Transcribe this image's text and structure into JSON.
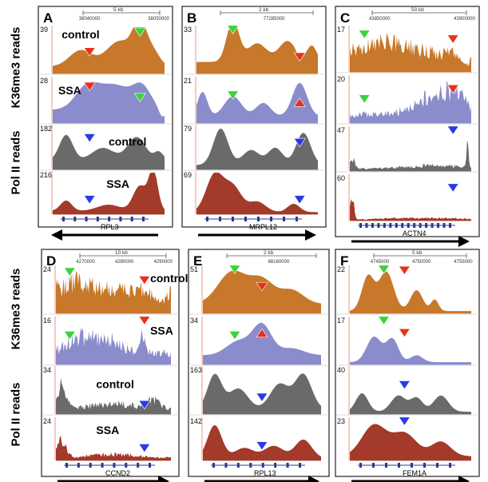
{
  "row_labels": {
    "top_k36": "K36me3 reads",
    "top_pol": "Pol II reads",
    "bottom_k36": "K36me3 reads",
    "bottom_pol": "Pol II reads"
  },
  "colors": {
    "control_k36": "#c8782a",
    "ssa_k36": "#8a8ccc",
    "control_pol": "#6a6a6a",
    "ssa_pol": "#a33a2a",
    "arrow_green": "#3ad33a",
    "arrow_red": "#e8301c",
    "arrow_blue": "#2a3ae8",
    "gene_model": "#2b3a8c"
  },
  "panels": [
    {
      "letter": "A",
      "gene": "RPL3",
      "arrow_dir": "left",
      "scale": "5 kb",
      "coords": [
        "38040000",
        "38050000"
      ],
      "tracks": [
        {
          "kind": "control_k36",
          "ymax": "39",
          "label": "control"
        },
        {
          "kind": "ssa_k36",
          "ymax": "28",
          "label": "SSA"
        },
        {
          "kind": "control_pol",
          "ymax": "182",
          "label": "control"
        },
        {
          "kind": "ssa_pol",
          "ymax": "216",
          "label": "SSA"
        }
      ]
    },
    {
      "letter": "B",
      "gene": "MRPL12",
      "arrow_dir": "right",
      "scale": "2 kb",
      "coords": [
        "77285000"
      ],
      "tracks": [
        {
          "kind": "control_k36",
          "ymax": "33",
          "label": ""
        },
        {
          "kind": "ssa_k36",
          "ymax": "21",
          "label": ""
        },
        {
          "kind": "control_pol",
          "ymax": "79",
          "label": ""
        },
        {
          "kind": "ssa_pol",
          "ymax": "69",
          "label": ""
        }
      ]
    },
    {
      "letter": "C",
      "gene": "ACTN4",
      "arrow_dir": "right",
      "scale": "50 kb",
      "coords": [
        "43850000",
        "43900000"
      ],
      "tracks": [
        {
          "kind": "control_k36",
          "ymax": "17",
          "label": ""
        },
        {
          "kind": "ssa_k36",
          "ymax": "20",
          "label": ""
        },
        {
          "kind": "control_pol",
          "ymax": "47",
          "label": ""
        },
        {
          "kind": "ssa_pol",
          "ymax": "60",
          "label": ""
        }
      ]
    },
    {
      "letter": "D",
      "gene": "CCND2",
      "arrow_dir": "right",
      "scale": "10 kb",
      "coords": [
        "4270000",
        "4280000",
        "4290000"
      ],
      "tracks": [
        {
          "kind": "control_k36",
          "ymax": "24",
          "label": "control"
        },
        {
          "kind": "ssa_k36",
          "ymax": "16",
          "label": "SSA"
        },
        {
          "kind": "control_pol",
          "ymax": "34",
          "label": "control"
        },
        {
          "kind": "ssa_pol",
          "ymax": "24",
          "label": "SSA"
        }
      ]
    },
    {
      "letter": "E",
      "gene": "RPL13",
      "arrow_dir": "right",
      "scale": "2 kb",
      "coords": [
        "88160000"
      ],
      "tracks": [
        {
          "kind": "control_k36",
          "ymax": "51",
          "label": ""
        },
        {
          "kind": "ssa_k36",
          "ymax": "34",
          "label": ""
        },
        {
          "kind": "control_pol",
          "ymax": "163",
          "label": ""
        },
        {
          "kind": "ssa_pol",
          "ymax": "142",
          "label": ""
        }
      ]
    },
    {
      "letter": "F",
      "gene": "FEM1A",
      "arrow_dir": "right",
      "scale": "5 kb",
      "coords": [
        "4745000",
        "4750000",
        "4755000"
      ],
      "tracks": [
        {
          "kind": "control_k36",
          "ymax": "22",
          "label": ""
        },
        {
          "kind": "ssa_k36",
          "ymax": "17",
          "label": ""
        },
        {
          "kind": "control_pol",
          "ymax": "40",
          "label": ""
        },
        {
          "kind": "ssa_pol",
          "ymax": "23",
          "label": ""
        }
      ]
    }
  ]
}
